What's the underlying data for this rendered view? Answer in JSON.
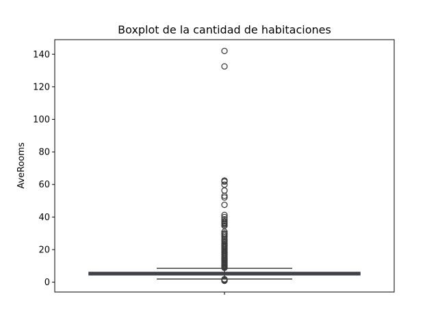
{
  "chart_data": {
    "type": "box",
    "title": "Boxplot de la cantidad de habitaciones",
    "xlabel": "",
    "ylabel": "AveRooms",
    "ylim": [
      -6.06,
      148.94
    ],
    "yticks": [
      0,
      20,
      40,
      60,
      80,
      100,
      120,
      140
    ],
    "grid": false,
    "box": {
      "whisker_low": 1.9,
      "q1": 4.44,
      "median": 5.23,
      "q3": 6.05,
      "whisker_high": 8.47,
      "color": "#3f5672",
      "edge_color": "#3b3b3b"
    },
    "outliers": [
      142.0,
      132.5,
      62.4,
      61.8,
      59.9,
      56.3,
      53.0,
      52.0,
      47.5,
      41.3,
      40.0,
      38.6,
      37.4,
      36.6,
      36.0,
      35.4,
      34.6,
      31.0,
      30.0,
      29.5,
      28.7,
      27.8,
      26.4,
      25.6,
      24.9,
      24.2,
      23.5,
      22.9,
      22.2,
      21.6,
      20.9,
      20.2,
      19.5,
      18.8,
      18.1,
      17.4,
      16.8,
      16.1,
      15.4,
      14.7,
      14.1,
      13.4,
      12.8,
      12.1,
      11.6,
      11.1,
      10.6,
      10.1,
      9.6,
      9.2,
      8.8,
      1.8,
      1.6,
      1.4,
      1.2,
      1.0,
      0.85
    ]
  }
}
